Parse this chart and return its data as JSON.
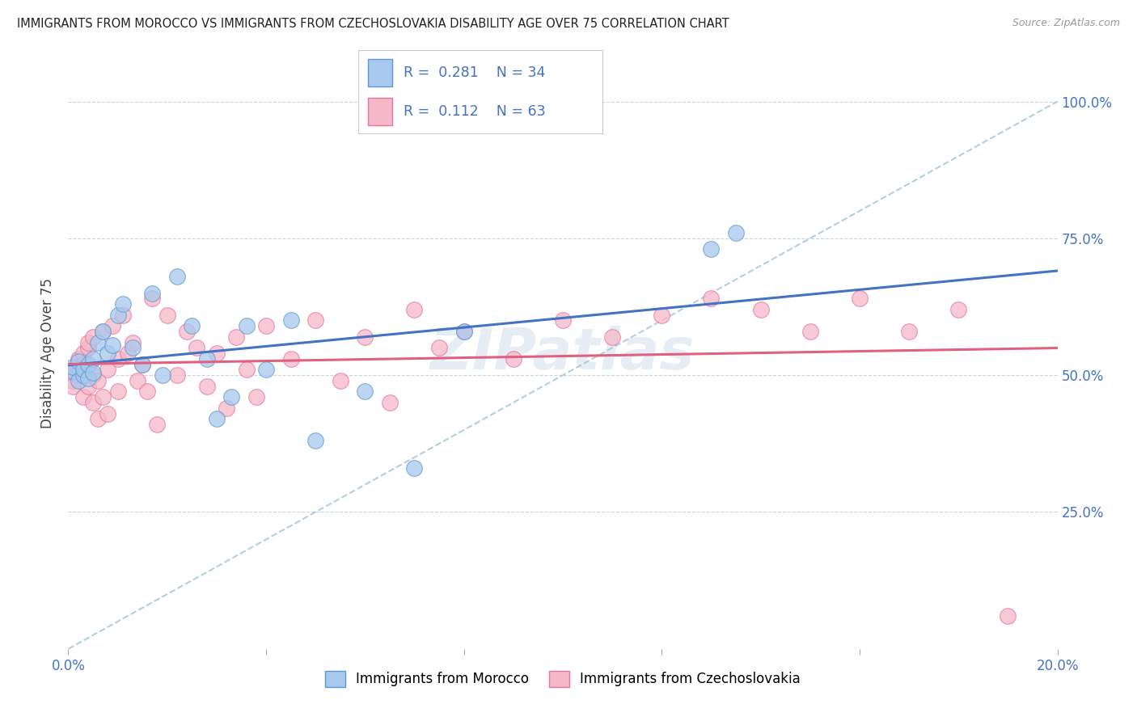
{
  "title": "IMMIGRANTS FROM MOROCCO VS IMMIGRANTS FROM CZECHOSLOVAKIA DISABILITY AGE OVER 75 CORRELATION CHART",
  "source": "Source: ZipAtlas.com",
  "ylabel": "Disability Age Over 75",
  "xlim": [
    0.0,
    0.2
  ],
  "ylim": [
    0.0,
    1.08
  ],
  "xticks": [
    0.0,
    0.04,
    0.08,
    0.12,
    0.16,
    0.2
  ],
  "xticklabels": [
    "0.0%",
    "",
    "",
    "",
    "",
    "20.0%"
  ],
  "yticks": [
    0.0,
    0.25,
    0.5,
    0.75,
    1.0
  ],
  "yticklabels_right": [
    "",
    "25.0%",
    "50.0%",
    "75.0%",
    "100.0%"
  ],
  "morocco_color": "#A8C8EE",
  "morocco_edge": "#5B9BD5",
  "czech_color": "#F5B8C8",
  "czech_edge": "#E8749A",
  "legend_R_morocco": "0.281",
  "legend_N_morocco": "34",
  "legend_R_czech": "0.112",
  "legend_N_czech": "63",
  "trend_morocco_color": "#4472C4",
  "trend_czech_color": "#E06080",
  "trend_ref_color": "#A0C4D4",
  "watermark": "ZIPatlas",
  "morocco_x": [
    0.001,
    0.001,
    0.002,
    0.002,
    0.003,
    0.003,
    0.004,
    0.004,
    0.005,
    0.005,
    0.006,
    0.007,
    0.008,
    0.009,
    0.01,
    0.011,
    0.013,
    0.015,
    0.017,
    0.019,
    0.022,
    0.025,
    0.028,
    0.03,
    0.033,
    0.036,
    0.04,
    0.045,
    0.05,
    0.06,
    0.07,
    0.08,
    0.13,
    0.135
  ],
  "morocco_y": [
    0.508,
    0.515,
    0.49,
    0.525,
    0.5,
    0.51,
    0.495,
    0.52,
    0.53,
    0.505,
    0.56,
    0.58,
    0.54,
    0.555,
    0.61,
    0.63,
    0.55,
    0.52,
    0.65,
    0.5,
    0.68,
    0.59,
    0.53,
    0.42,
    0.46,
    0.59,
    0.51,
    0.6,
    0.38,
    0.47,
    0.33,
    0.58,
    0.73,
    0.76
  ],
  "czech_x": [
    0.001,
    0.001,
    0.001,
    0.001,
    0.002,
    0.002,
    0.002,
    0.003,
    0.003,
    0.003,
    0.004,
    0.004,
    0.004,
    0.005,
    0.005,
    0.005,
    0.006,
    0.006,
    0.007,
    0.007,
    0.008,
    0.008,
    0.009,
    0.01,
    0.01,
    0.011,
    0.012,
    0.013,
    0.014,
    0.015,
    0.016,
    0.017,
    0.018,
    0.02,
    0.022,
    0.024,
    0.026,
    0.028,
    0.03,
    0.032,
    0.034,
    0.036,
    0.038,
    0.04,
    0.045,
    0.05,
    0.055,
    0.06,
    0.065,
    0.07,
    0.075,
    0.08,
    0.09,
    0.1,
    0.11,
    0.12,
    0.13,
    0.14,
    0.15,
    0.16,
    0.17,
    0.18,
    0.19
  ],
  "czech_y": [
    0.505,
    0.51,
    0.49,
    0.48,
    0.53,
    0.5,
    0.515,
    0.46,
    0.54,
    0.52,
    0.55,
    0.48,
    0.56,
    0.45,
    0.5,
    0.57,
    0.42,
    0.49,
    0.58,
    0.46,
    0.51,
    0.43,
    0.59,
    0.47,
    0.53,
    0.61,
    0.54,
    0.56,
    0.49,
    0.52,
    0.47,
    0.64,
    0.41,
    0.61,
    0.5,
    0.58,
    0.55,
    0.48,
    0.54,
    0.44,
    0.57,
    0.51,
    0.46,
    0.59,
    0.53,
    0.6,
    0.49,
    0.57,
    0.45,
    0.62,
    0.55,
    0.58,
    0.53,
    0.6,
    0.57,
    0.61,
    0.64,
    0.62,
    0.58,
    0.64,
    0.58,
    0.62,
    0.06
  ]
}
